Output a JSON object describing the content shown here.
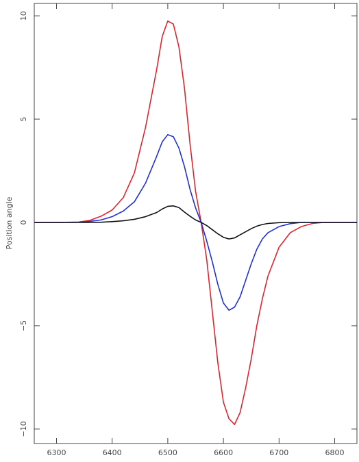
{
  "chart_data": {
    "type": "line",
    "title": "",
    "xlabel": "",
    "ylabel": "Position angle",
    "xlim": [
      6260,
      6840
    ],
    "ylim": [
      -10.7,
      10.6
    ],
    "grid": false,
    "legend": "none",
    "xticks": [
      6300,
      6400,
      6500,
      6600,
      6700,
      6800
    ],
    "yticks": [
      -10,
      -5,
      0,
      5,
      10
    ],
    "xtick_labels": [
      "6300",
      "6400",
      "6500",
      "6600",
      "6700",
      "6800"
    ],
    "ytick_labels": [
      "−10",
      "−5",
      "0",
      "5",
      "10"
    ],
    "x": [
      6260,
      6300,
      6340,
      6360,
      6380,
      6400,
      6420,
      6440,
      6460,
      6480,
      6490,
      6500,
      6510,
      6520,
      6530,
      6540,
      6550,
      6560,
      6570,
      6580,
      6590,
      6600,
      6610,
      6620,
      6630,
      6640,
      6650,
      6660,
      6670,
      6680,
      6700,
      6720,
      6740,
      6760,
      6780,
      6800,
      6840
    ],
    "series": [
      {
        "color": "#e8202a",
        "values": [
          0,
          0,
          0.02,
          0.1,
          0.3,
          0.6,
          1.2,
          2.4,
          4.6,
          7.4,
          9.0,
          9.75,
          9.6,
          8.5,
          6.5,
          3.8,
          1.5,
          0.0,
          -1.8,
          -4.3,
          -6.8,
          -8.7,
          -9.5,
          -9.78,
          -9.2,
          -8.0,
          -6.6,
          -5.0,
          -3.7,
          -2.6,
          -1.2,
          -0.5,
          -0.2,
          -0.05,
          0,
          0,
          0
        ]
      },
      {
        "color": "#1f2ee0",
        "values": [
          0,
          0,
          0.01,
          0.05,
          0.12,
          0.28,
          0.55,
          1.0,
          1.9,
          3.2,
          3.9,
          4.25,
          4.15,
          3.6,
          2.7,
          1.6,
          0.7,
          0.0,
          -0.9,
          -1.9,
          -3.0,
          -3.9,
          -4.25,
          -4.1,
          -3.6,
          -2.8,
          -2.0,
          -1.3,
          -0.8,
          -0.5,
          -0.2,
          -0.06,
          0,
          0,
          0,
          0,
          0
        ]
      },
      {
        "color": "#111111",
        "values": [
          0,
          0,
          0,
          0,
          0.01,
          0.04,
          0.08,
          0.15,
          0.28,
          0.48,
          0.65,
          0.78,
          0.8,
          0.72,
          0.5,
          0.3,
          0.12,
          0.0,
          -0.15,
          -0.35,
          -0.55,
          -0.72,
          -0.8,
          -0.75,
          -0.6,
          -0.45,
          -0.3,
          -0.18,
          -0.1,
          -0.05,
          -0.01,
          0,
          0,
          0,
          0,
          0,
          0
        ]
      }
    ]
  }
}
